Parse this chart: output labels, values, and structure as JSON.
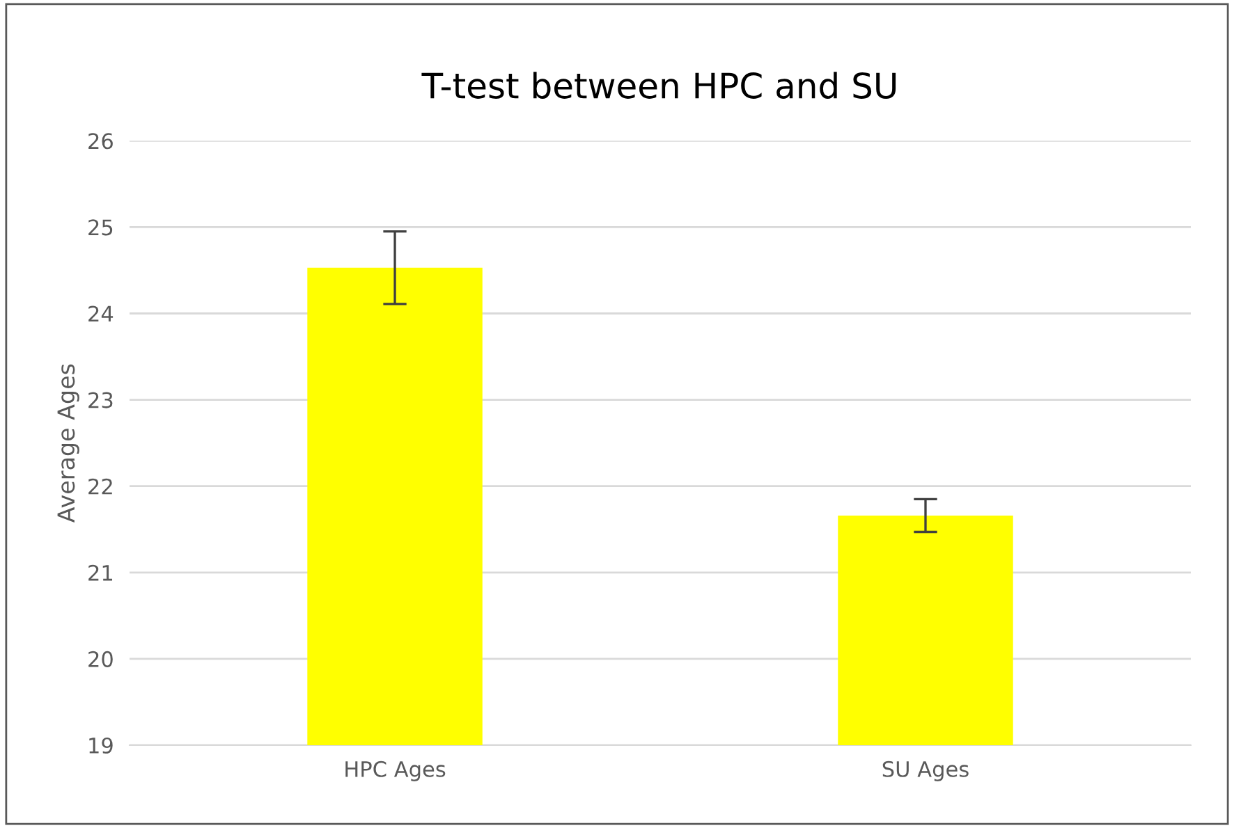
{
  "chart_data": {
    "type": "bar",
    "title": "T-test between HPC and SU",
    "ylabel": "Average Ages",
    "categories": [
      "HPC Ages",
      "SU Ages"
    ],
    "values": [
      24.53,
      21.66
    ],
    "errors": [
      0.42,
      0.19
    ],
    "color": "#ffff00",
    "ylim": [
      19,
      26
    ],
    "yticks": [
      19,
      20,
      21,
      22,
      23,
      24,
      25,
      26
    ],
    "grid": "y"
  }
}
